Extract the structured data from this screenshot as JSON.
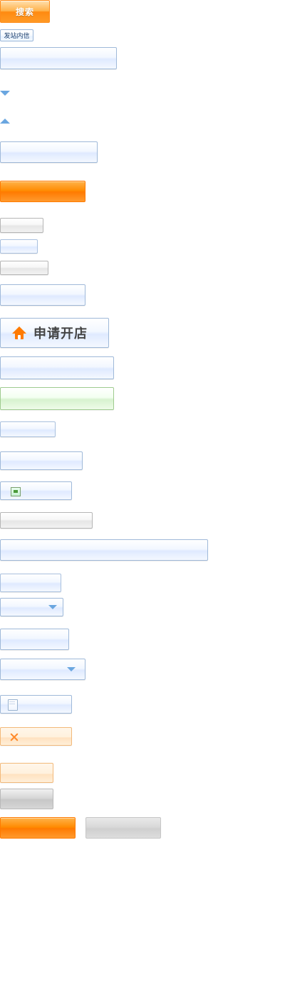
{
  "buttons": {
    "search_label": "搜索",
    "send_message_label": "发站内信",
    "apply_shop_label": "申请开店"
  },
  "icons": {
    "down_arrow": "chevron-down-icon",
    "up_arrow": "chevron-up-icon",
    "home": "home-icon",
    "image": "image-icon",
    "document": "document-icon",
    "close": "close-icon"
  },
  "colors": {
    "orange": "#ff8a00",
    "blue_border": "#9fb9d9",
    "blue_arrow": "#6aa6e0",
    "grey_border": "#b6b6b6",
    "green_border": "#9fcb8f"
  }
}
